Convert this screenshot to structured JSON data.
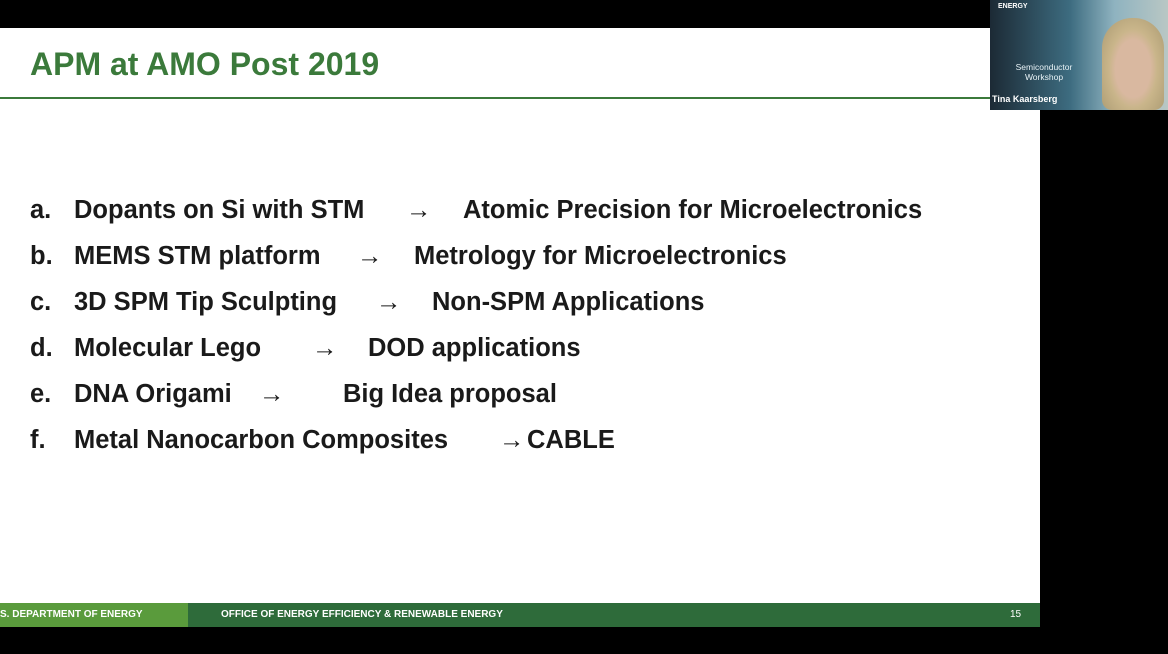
{
  "slide": {
    "title": "APM at AMO Post 2019",
    "items": [
      {
        "label": "a.",
        "topic": "Dopants on Si  with STM",
        "arrow": "→",
        "outcome": "Atomic Precision for Microelectronics"
      },
      {
        "label": "b.",
        "topic": "MEMS STM platform",
        "arrow": "→",
        "outcome": "Metrology for Microelectronics"
      },
      {
        "label": "c.",
        "topic": "3D SPM Tip Sculpting",
        "arrow": "→",
        "outcome": "Non-SPM Applications"
      },
      {
        "label": "d.",
        "topic": "Molecular Lego",
        "arrow": "→",
        "outcome": "DOD applications"
      },
      {
        "label": "e.",
        "topic": "DNA Origami",
        "arrow": "→",
        "outcome": "Big Idea proposal"
      },
      {
        "label": "f.",
        "topic": "Metal Nanocarbon Composites",
        "arrow": "→",
        "outcome": "CABLE"
      }
    ],
    "footer": {
      "left": "S. DEPARTMENT OF ENERGY",
      "middle": "OFFICE OF ENERGY EFFICIENCY & RENEWABLE ENERGY",
      "page_number": "15"
    }
  },
  "video": {
    "logo": "ENERGY",
    "background_text": "Semiconductor Workshop",
    "participant_name": "Tina Kaarsberg"
  },
  "colors": {
    "title_green": "#3b7a3b",
    "footer_dark": "#2e6b3a",
    "footer_light": "#5a9b3c"
  }
}
